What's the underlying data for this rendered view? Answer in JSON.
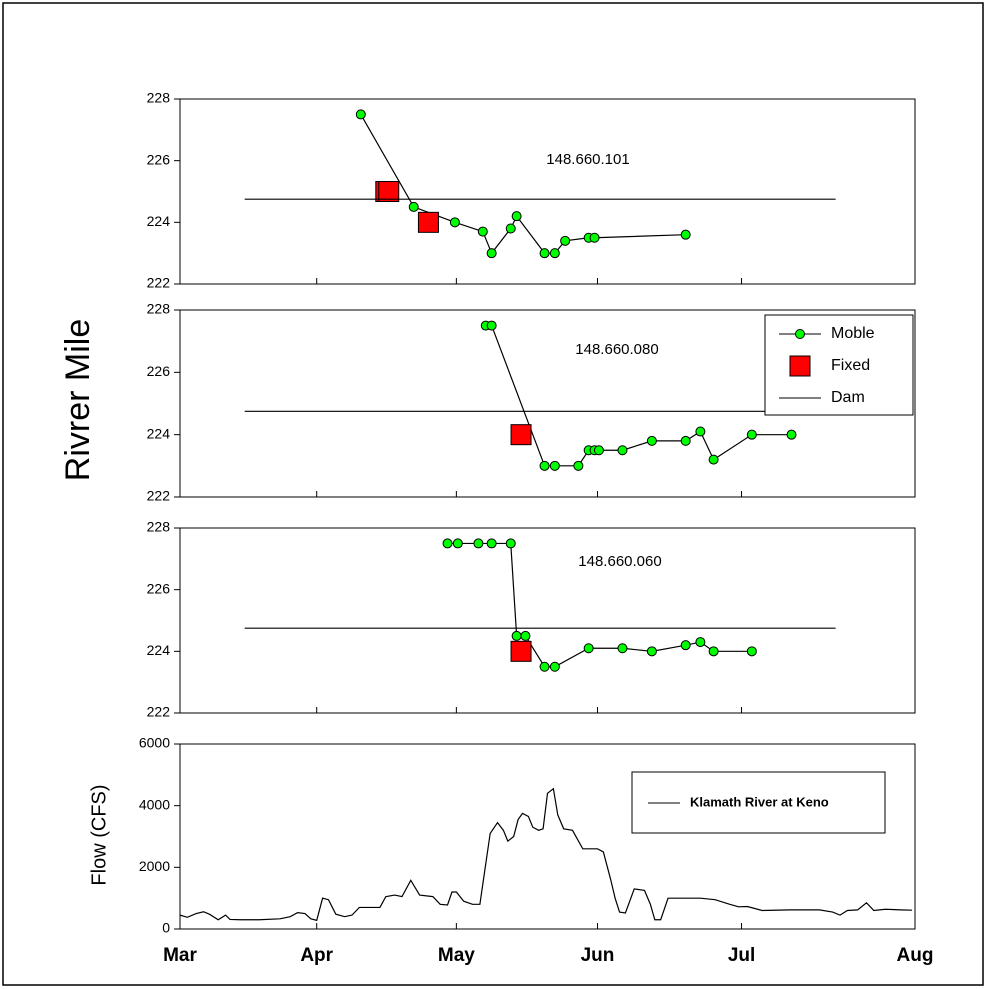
{
  "chart_data": [
    {
      "type": "line",
      "ylabel": "Rivrer Mile",
      "annotation": "148.660.101",
      "xlim": [
        3,
        8
      ],
      "ylim": [
        222,
        228
      ],
      "yticks": [
        222,
        224,
        226,
        228
      ],
      "series": [
        {
          "color": "#00ff00",
          "line_color": "#000000",
          "marker": "circle",
          "x": [
            4.23,
            4.59,
            4.87,
            5.06,
            5.12,
            5.25,
            5.29,
            5.48,
            5.55,
            5.62,
            5.78,
            5.82,
            6.44
          ],
          "values": [
            227.5,
            224.5,
            224.0,
            223.7,
            223.0,
            223.8,
            224.2,
            223.0,
            223.0,
            223.4,
            223.5,
            223.5,
            223.6
          ]
        },
        {
          "color": "#ff0000",
          "marker": "square",
          "x": [
            4.4,
            4.42,
            4.69
          ],
          "values": [
            225.0,
            225.0,
            224.0
          ]
        },
        {
          "color": "#000000",
          "marker": "none",
          "x": [
            3.44,
            7.46
          ],
          "values": [
            224.75,
            224.75
          ]
        }
      ]
    },
    {
      "type": "line",
      "annotation": "148.660.080",
      "legend": "upper right",
      "xlim": [
        3,
        8
      ],
      "ylim": [
        222,
        228
      ],
      "yticks": [
        222,
        224,
        226,
        228
      ],
      "series": [
        {
          "name": "Moble",
          "color": "#00ff00",
          "line_color": "#000000",
          "marker": "circle",
          "x": [
            5.08,
            5.12,
            5.48,
            5.55,
            5.71,
            5.78,
            5.82,
            5.85,
            6.01,
            6.21,
            6.44,
            6.54,
            6.63,
            6.89,
            7.16
          ],
          "values": [
            227.5,
            227.5,
            223.0,
            223.0,
            223.0,
            223.5,
            223.5,
            223.5,
            223.5,
            223.8,
            223.8,
            224.1,
            223.2,
            224.0,
            224.0
          ]
        },
        {
          "name": "Fixed",
          "color": "#ff0000",
          "marker": "square",
          "x": [
            5.32
          ],
          "values": [
            224.0
          ]
        },
        {
          "name": "Dam",
          "color": "#000000",
          "marker": "none",
          "x": [
            3.44,
            7.46
          ],
          "values": [
            224.75,
            224.75
          ]
        }
      ]
    },
    {
      "type": "line",
      "annotation": "148.660.060",
      "xlim": [
        3,
        8
      ],
      "ylim": [
        222,
        228
      ],
      "yticks": [
        222,
        224,
        226,
        228
      ],
      "series": [
        {
          "color": "#00ff00",
          "line_color": "#000000",
          "marker": "circle",
          "x": [
            4.82,
            4.89,
            5.03,
            5.12,
            5.25,
            5.29,
            5.35,
            5.48,
            5.55,
            5.78,
            6.01,
            6.21,
            6.44,
            6.54,
            6.63,
            6.89
          ],
          "values": [
            227.5,
            227.5,
            227.5,
            227.5,
            227.5,
            224.5,
            224.5,
            223.5,
            223.5,
            224.1,
            224.1,
            224.0,
            224.2,
            224.3,
            224.0,
            224.0
          ]
        },
        {
          "color": "#ff0000",
          "marker": "square",
          "x": [
            5.32
          ],
          "values": [
            224.0
          ]
        },
        {
          "color": "#000000",
          "marker": "none",
          "x": [
            3.44,
            7.46
          ],
          "values": [
            224.75,
            224.75
          ]
        }
      ]
    },
    {
      "type": "line",
      "ylabel": "Flow (CFS)",
      "legend": "box",
      "xlim": [
        3,
        8
      ],
      "ylim": [
        0,
        6000
      ],
      "yticks": [
        0,
        2000,
        4000,
        6000
      ],
      "xticks": [
        {
          "value": 3,
          "label": "Mar"
        },
        {
          "value": 3.93,
          "label": "Apr"
        },
        {
          "value": 4.88,
          "label": "May"
        },
        {
          "value": 5.84,
          "label": "Jun"
        },
        {
          "value": 6.82,
          "label": "Jul"
        },
        {
          "value": 8,
          "label": "Aug"
        }
      ],
      "series": [
        {
          "name": "Klamath River at Keno",
          "color": "#000000",
          "marker": "none",
          "x": [
            3.0,
            3.05,
            3.11,
            3.16,
            3.2,
            3.26,
            3.31,
            3.34,
            3.41,
            3.54,
            3.68,
            3.75,
            3.8,
            3.85,
            3.89,
            3.93,
            3.97,
            4.01,
            4.06,
            4.12,
            4.17,
            4.22,
            4.36,
            4.4,
            4.46,
            4.51,
            4.57,
            4.63,
            4.72,
            4.77,
            4.82,
            4.85,
            4.88,
            4.93,
            4.99,
            5.04,
            5.11,
            5.16,
            5.2,
            5.23,
            5.27,
            5.3,
            5.33,
            5.37,
            5.4,
            5.44,
            5.47,
            5.5,
            5.54,
            5.57,
            5.61,
            5.67,
            5.74,
            5.84,
            5.88,
            5.93,
            5.96,
            5.99,
            6.03,
            6.09,
            6.16,
            6.2,
            6.23,
            6.27,
            6.32,
            6.54,
            6.64,
            6.74,
            6.8,
            6.86,
            6.96,
            7.15,
            7.35,
            7.44,
            7.49,
            7.54,
            7.61,
            7.67,
            7.72,
            7.8,
            7.9,
            7.98
          ],
          "values": [
            450,
            380,
            500,
            560,
            480,
            300,
            450,
            310,
            300,
            300,
            330,
            400,
            530,
            500,
            330,
            280,
            1000,
            950,
            480,
            400,
            450,
            700,
            700,
            1050,
            1100,
            1050,
            1580,
            1100,
            1050,
            800,
            780,
            1200,
            1200,
            900,
            800,
            800,
            3100,
            3450,
            3200,
            2850,
            3000,
            3550,
            3750,
            3650,
            3300,
            3200,
            3250,
            4400,
            4550,
            3700,
            3250,
            3200,
            2600,
            2600,
            2500,
            1600,
            1000,
            550,
            520,
            1300,
            1250,
            800,
            300,
            300,
            1000,
            1000,
            950,
            800,
            720,
            730,
            600,
            620,
            620,
            550,
            450,
            600,
            620,
            850,
            600,
            640,
            620,
            610
          ]
        }
      ]
    }
  ]
}
